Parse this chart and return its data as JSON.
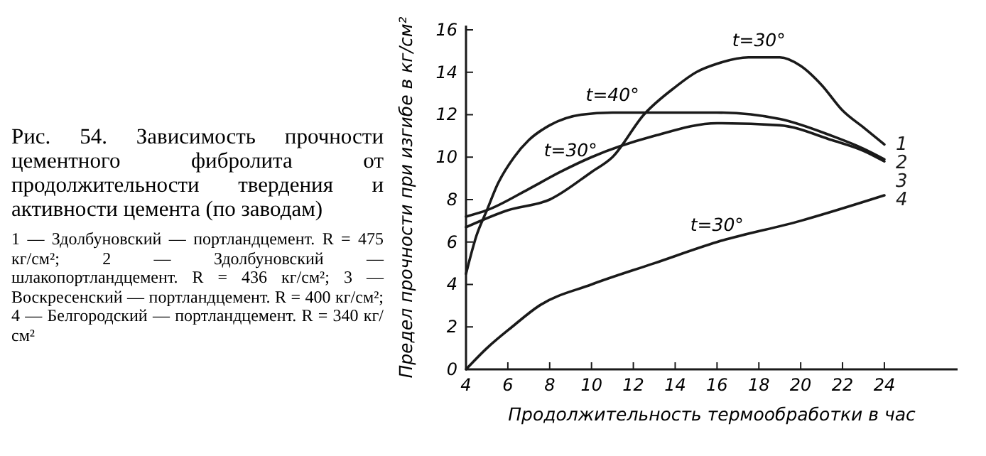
{
  "chart_data": {
    "type": "line",
    "title": "Рис. 54. Зависимость прочности цементного фибролита от продолжительности твердения и активности цемента (по заводам)",
    "xlabel": "Продолжительность термообработки в час",
    "ylabel": "Предел прочности при изгибе в кг/см²",
    "xlim": [
      4,
      27.5
    ],
    "xticks": [
      4,
      6,
      8,
      10,
      12,
      14,
      16,
      18,
      20,
      22,
      24
    ],
    "ylim": [
      0,
      16.2
    ],
    "yticks": [
      0,
      2,
      4,
      6,
      8,
      10,
      12,
      14,
      16
    ],
    "series": [
      {
        "name": "1",
        "color": "#1a1a1a",
        "x": [
          4,
          6,
          8,
          10,
          11,
          12.5,
          14,
          15,
          16,
          17.5,
          19,
          20,
          21,
          22,
          23,
          24
        ],
        "values": [
          6.7,
          7.5,
          8,
          9.3,
          10,
          12,
          13.3,
          14,
          14.4,
          14.7,
          14.7,
          14.3,
          13.4,
          12.2,
          11.4,
          10.6
        ]
      },
      {
        "name": "2",
        "color": "#1a1a1a",
        "x": [
          4,
          4.5,
          5,
          5.5,
          6.3,
          7,
          8,
          9.5,
          11,
          13,
          16,
          19,
          21.5,
          23,
          24
        ],
        "values": [
          4.5,
          6.3,
          7.5,
          8.7,
          10,
          10.8,
          11.5,
          12,
          12.1,
          12.1,
          12.1,
          11.8,
          11,
          10.4,
          9.9
        ]
      },
      {
        "name": "3",
        "color": "#1a1a1a",
        "x": [
          4,
          5,
          7,
          8.5,
          10,
          13,
          16,
          19,
          21.5,
          23,
          24
        ],
        "values": [
          7.2,
          7.5,
          8.5,
          9.3,
          10,
          11,
          11.6,
          11.5,
          10.8,
          10.3,
          9.8
        ]
      },
      {
        "name": "4",
        "color": "#1a1a1a",
        "x": [
          4,
          5,
          6.2,
          7.5,
          10,
          13,
          16,
          20,
          24
        ],
        "values": [
          0,
          1,
          2,
          3,
          4,
          5,
          6,
          7,
          8.2
        ]
      }
    ],
    "annotations": [
      {
        "text": "t=30°",
        "x": 18,
        "y": 14.7
      },
      {
        "text": "t=40°",
        "x": 11,
        "y": 12.1
      },
      {
        "text": "t=30°",
        "x": 9,
        "y": 9.5
      },
      {
        "text": "t=30°",
        "x": 16,
        "y": 6
      },
      "1 — Здолбуновский — портландцемент. R = 475 кг/см²; 2 — Здолбуновский — шлакопортландцемент. R = 436 кг/см²; 3 — Воскресенский — портландцемент. R = 400 кг/см²; 4 — Белгородский — портландцемент. R = 340 кг/см²"
    ],
    "grid": false,
    "marker": "none",
    "line_style": "solid"
  }
}
